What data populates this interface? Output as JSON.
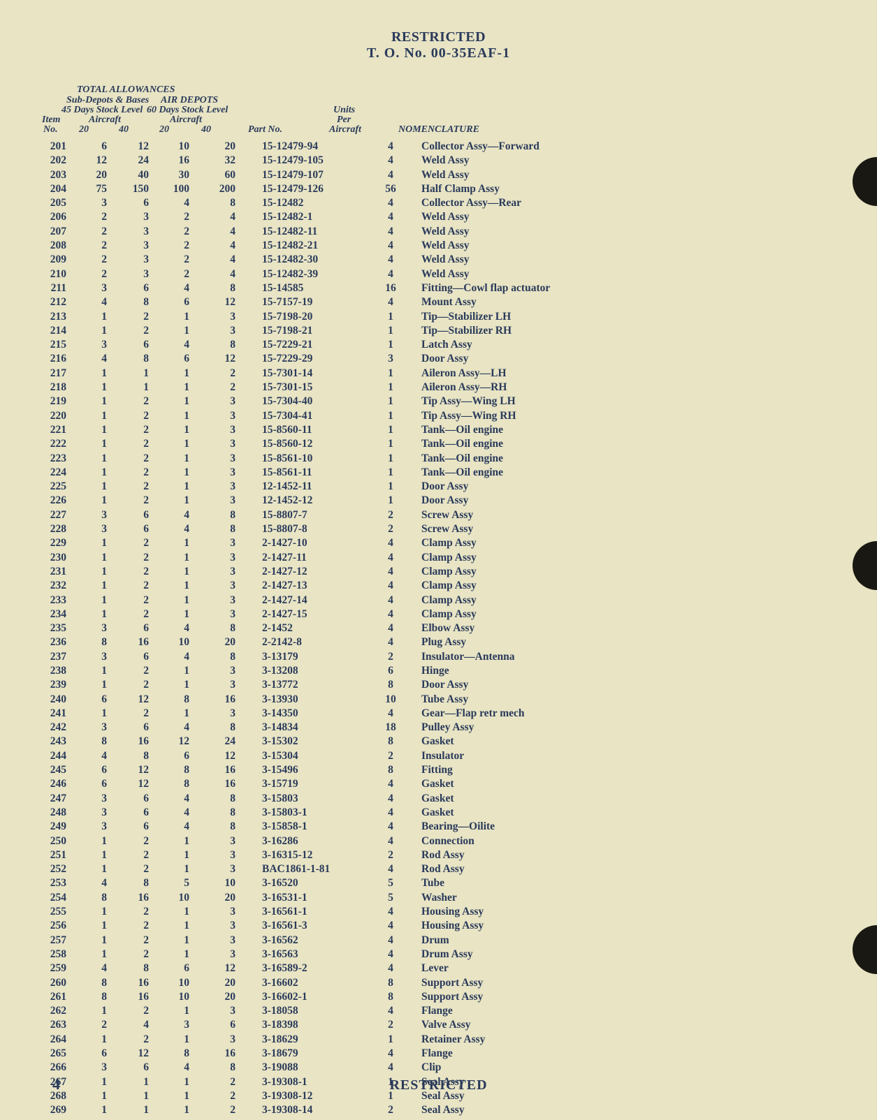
{
  "header": {
    "l1": "RESTRICTED",
    "l2": "T. O. No. 00-35EAF-1"
  },
  "footer": {
    "page": "4",
    "restricted": "RESTRICTED"
  },
  "head": {
    "total_allow": "TOTAL ALLOWANCES",
    "sub_depots": "Sub-Depots & Bases",
    "air_depots": "AIR DEPOTS",
    "l45": "45 Days Stock Level",
    "l60": "60 Days Stock Level",
    "aircraft": "Aircraft",
    "item": "Item",
    "no": "No.",
    "c20": "20",
    "c40": "40",
    "partno": "Part No.",
    "units": "Units",
    "per": "Per",
    "aircraft2": "Aircraft",
    "nomen": "NOMENCLATURE"
  },
  "col_widths": {
    "item": 48,
    "c1": 50,
    "c2": 60,
    "c3": 55,
    "c4": 60,
    "part": 170,
    "upa": 80,
    "nomen": 300
  },
  "rows": [
    {
      "i": "201",
      "a": "6",
      "b": "12",
      "c": "10",
      "d": "20",
      "p": "15-12479-94",
      "u": "4",
      "n": "Collector Assy—Forward"
    },
    {
      "i": "202",
      "a": "12",
      "b": "24",
      "c": "16",
      "d": "32",
      "p": "15-12479-105",
      "u": "4",
      "n": "Weld Assy"
    },
    {
      "i": "203",
      "a": "20",
      "b": "40",
      "c": "30",
      "d": "60",
      "p": "15-12479-107",
      "u": "4",
      "n": "Weld Assy"
    },
    {
      "i": "204",
      "a": "75",
      "b": "150",
      "c": "100",
      "d": "200",
      "p": "15-12479-126",
      "u": "56",
      "n": "Half Clamp Assy"
    },
    {
      "i": "205",
      "a": "3",
      "b": "6",
      "c": "4",
      "d": "8",
      "p": "15-12482",
      "u": "4",
      "n": "Collector Assy—Rear"
    },
    {
      "i": "206",
      "a": "2",
      "b": "3",
      "c": "2",
      "d": "4",
      "p": "15-12482-1",
      "u": "4",
      "n": "Weld Assy"
    },
    {
      "i": "207",
      "a": "2",
      "b": "3",
      "c": "2",
      "d": "4",
      "p": "15-12482-11",
      "u": "4",
      "n": "Weld Assy"
    },
    {
      "i": "208",
      "a": "2",
      "b": "3",
      "c": "2",
      "d": "4",
      "p": "15-12482-21",
      "u": "4",
      "n": "Weld Assy"
    },
    {
      "i": "209",
      "a": "2",
      "b": "3",
      "c": "2",
      "d": "4",
      "p": "15-12482-30",
      "u": "4",
      "n": "Weld Assy"
    },
    {
      "i": "210",
      "a": "2",
      "b": "3",
      "c": "2",
      "d": "4",
      "p": "15-12482-39",
      "u": "4",
      "n": "Weld Assy"
    },
    {
      "i": "211",
      "a": "3",
      "b": "6",
      "c": "4",
      "d": "8",
      "p": "15-14585",
      "u": "16",
      "n": "Fitting—Cowl flap actuator"
    },
    {
      "i": "212",
      "a": "4",
      "b": "8",
      "c": "6",
      "d": "12",
      "p": "15-7157-19",
      "u": "4",
      "n": "Mount Assy"
    },
    {
      "i": "213",
      "a": "1",
      "b": "2",
      "c": "1",
      "d": "3",
      "p": "15-7198-20",
      "u": "1",
      "n": "Tip—Stabilizer LH"
    },
    {
      "i": "214",
      "a": "1",
      "b": "2",
      "c": "1",
      "d": "3",
      "p": "15-7198-21",
      "u": "1",
      "n": "Tip—Stabilizer RH"
    },
    {
      "i": "215",
      "a": "3",
      "b": "6",
      "c": "4",
      "d": "8",
      "p": "15-7229-21",
      "u": "1",
      "n": "Latch Assy"
    },
    {
      "i": "216",
      "a": "4",
      "b": "8",
      "c": "6",
      "d": "12",
      "p": "15-7229-29",
      "u": "3",
      "n": "Door Assy"
    },
    {
      "i": "217",
      "a": "1",
      "b": "1",
      "c": "1",
      "d": "2",
      "p": "15-7301-14",
      "u": "1",
      "n": "Aileron Assy—LH"
    },
    {
      "i": "218",
      "a": "1",
      "b": "1",
      "c": "1",
      "d": "2",
      "p": "15-7301-15",
      "u": "1",
      "n": "Aileron Assy—RH"
    },
    {
      "i": "219",
      "a": "1",
      "b": "2",
      "c": "1",
      "d": "3",
      "p": "15-7304-40",
      "u": "1",
      "n": "Tip Assy—Wing LH"
    },
    {
      "i": "220",
      "a": "1",
      "b": "2",
      "c": "1",
      "d": "3",
      "p": "15-7304-41",
      "u": "1",
      "n": "Tip Assy—Wing RH"
    },
    {
      "i": "221",
      "a": "1",
      "b": "2",
      "c": "1",
      "d": "3",
      "p": "15-8560-11",
      "u": "1",
      "n": "Tank—Oil engine"
    },
    {
      "i": "222",
      "a": "1",
      "b": "2",
      "c": "1",
      "d": "3",
      "p": "15-8560-12",
      "u": "1",
      "n": "Tank—Oil engine"
    },
    {
      "i": "223",
      "a": "1",
      "b": "2",
      "c": "1",
      "d": "3",
      "p": "15-8561-10",
      "u": "1",
      "n": "Tank—Oil engine"
    },
    {
      "i": "224",
      "a": "1",
      "b": "2",
      "c": "1",
      "d": "3",
      "p": "15-8561-11",
      "u": "1",
      "n": "Tank—Oil engine"
    },
    {
      "i": "225",
      "a": "1",
      "b": "2",
      "c": "1",
      "d": "3",
      "p": "12-1452-11",
      "u": "1",
      "n": "Door Assy"
    },
    {
      "i": "226",
      "a": "1",
      "b": "2",
      "c": "1",
      "d": "3",
      "p": "12-1452-12",
      "u": "1",
      "n": "Door Assy"
    },
    {
      "i": "227",
      "a": "3",
      "b": "6",
      "c": "4",
      "d": "8",
      "p": "15-8807-7",
      "u": "2",
      "n": "Screw Assy"
    },
    {
      "i": "228",
      "a": "3",
      "b": "6",
      "c": "4",
      "d": "8",
      "p": "15-8807-8",
      "u": "2",
      "n": "Screw Assy"
    },
    {
      "i": "229",
      "a": "1",
      "b": "2",
      "c": "1",
      "d": "3",
      "p": "2-1427-10",
      "u": "4",
      "n": "Clamp Assy"
    },
    {
      "i": "230",
      "a": "1",
      "b": "2",
      "c": "1",
      "d": "3",
      "p": "2-1427-11",
      "u": "4",
      "n": "Clamp Assy"
    },
    {
      "i": "231",
      "a": "1",
      "b": "2",
      "c": "1",
      "d": "3",
      "p": "2-1427-12",
      "u": "4",
      "n": "Clamp Assy"
    },
    {
      "i": "232",
      "a": "1",
      "b": "2",
      "c": "1",
      "d": "3",
      "p": "2-1427-13",
      "u": "4",
      "n": "Clamp Assy"
    },
    {
      "i": "233",
      "a": "1",
      "b": "2",
      "c": "1",
      "d": "3",
      "p": "2-1427-14",
      "u": "4",
      "n": "Clamp Assy"
    },
    {
      "i": "234",
      "a": "1",
      "b": "2",
      "c": "1",
      "d": "3",
      "p": "2-1427-15",
      "u": "4",
      "n": "Clamp Assy"
    },
    {
      "i": "235",
      "a": "3",
      "b": "6",
      "c": "4",
      "d": "8",
      "p": "2-1452",
      "u": "4",
      "n": "Elbow Assy"
    },
    {
      "i": "236",
      "a": "8",
      "b": "16",
      "c": "10",
      "d": "20",
      "p": "2-2142-8",
      "u": "4",
      "n": "Plug Assy"
    },
    {
      "i": "237",
      "a": "3",
      "b": "6",
      "c": "4",
      "d": "8",
      "p": "3-13179",
      "u": "2",
      "n": "Insulator—Antenna"
    },
    {
      "i": "238",
      "a": "1",
      "b": "2",
      "c": "1",
      "d": "3",
      "p": "3-13208",
      "u": "6",
      "n": "Hinge"
    },
    {
      "i": "239",
      "a": "1",
      "b": "2",
      "c": "1",
      "d": "3",
      "p": "3-13772",
      "u": "8",
      "n": "Door Assy"
    },
    {
      "i": "240",
      "a": "6",
      "b": "12",
      "c": "8",
      "d": "16",
      "p": "3-13930",
      "u": "10",
      "n": "Tube Assy"
    },
    {
      "i": "241",
      "a": "1",
      "b": "2",
      "c": "1",
      "d": "3",
      "p": "3-14350",
      "u": "4",
      "n": "Gear—Flap retr mech"
    },
    {
      "i": "242",
      "a": "3",
      "b": "6",
      "c": "4",
      "d": "8",
      "p": "3-14834",
      "u": "18",
      "n": "Pulley Assy"
    },
    {
      "i": "243",
      "a": "8",
      "b": "16",
      "c": "12",
      "d": "24",
      "p": "3-15302",
      "u": "8",
      "n": "Gasket"
    },
    {
      "i": "244",
      "a": "4",
      "b": "8",
      "c": "6",
      "d": "12",
      "p": "3-15304",
      "u": "2",
      "n": "Insulator"
    },
    {
      "i": "245",
      "a": "6",
      "b": "12",
      "c": "8",
      "d": "16",
      "p": "3-15496",
      "u": "8",
      "n": "Fitting"
    },
    {
      "i": "246",
      "a": "6",
      "b": "12",
      "c": "8",
      "d": "16",
      "p": "3-15719",
      "u": "4",
      "n": "Gasket"
    },
    {
      "i": "247",
      "a": "3",
      "b": "6",
      "c": "4",
      "d": "8",
      "p": "3-15803",
      "u": "4",
      "n": "Gasket"
    },
    {
      "i": "248",
      "a": "3",
      "b": "6",
      "c": "4",
      "d": "8",
      "p": "3-15803-1",
      "u": "4",
      "n": "Gasket"
    },
    {
      "i": "249",
      "a": "3",
      "b": "6",
      "c": "4",
      "d": "8",
      "p": "3-15858-1",
      "u": "4",
      "n": "Bearing—Oilite"
    },
    {
      "i": "250",
      "a": "1",
      "b": "2",
      "c": "1",
      "d": "3",
      "p": "3-16286",
      "u": "4",
      "n": "Connection"
    },
    {
      "i": "251",
      "a": "1",
      "b": "2",
      "c": "1",
      "d": "3",
      "p": "3-16315-12",
      "u": "2",
      "n": "Rod Assy"
    },
    {
      "i": "252",
      "a": "1",
      "b": "2",
      "c": "1",
      "d": "3",
      "p": "BAC1861-1-81",
      "u": "4",
      "n": "Rod Assy"
    },
    {
      "i": "253",
      "a": "4",
      "b": "8",
      "c": "5",
      "d": "10",
      "p": "3-16520",
      "u": "5",
      "n": "Tube"
    },
    {
      "i": "254",
      "a": "8",
      "b": "16",
      "c": "10",
      "d": "20",
      "p": "3-16531-1",
      "u": "5",
      "n": "Washer"
    },
    {
      "i": "255",
      "a": "1",
      "b": "2",
      "c": "1",
      "d": "3",
      "p": "3-16561-1",
      "u": "4",
      "n": "Housing Assy"
    },
    {
      "i": "256",
      "a": "1",
      "b": "2",
      "c": "1",
      "d": "3",
      "p": "3-16561-3",
      "u": "4",
      "n": "Housing Assy"
    },
    {
      "i": "257",
      "a": "1",
      "b": "2",
      "c": "1",
      "d": "3",
      "p": "3-16562",
      "u": "4",
      "n": "Drum"
    },
    {
      "i": "258",
      "a": "1",
      "b": "2",
      "c": "1",
      "d": "3",
      "p": "3-16563",
      "u": "4",
      "n": "Drum Assy"
    },
    {
      "i": "259",
      "a": "4",
      "b": "8",
      "c": "6",
      "d": "12",
      "p": "3-16589-2",
      "u": "4",
      "n": "Lever"
    },
    {
      "i": "260",
      "a": "8",
      "b": "16",
      "c": "10",
      "d": "20",
      "p": "3-16602",
      "u": "8",
      "n": "Support Assy"
    },
    {
      "i": "261",
      "a": "8",
      "b": "16",
      "c": "10",
      "d": "20",
      "p": "3-16602-1",
      "u": "8",
      "n": "Support Assy"
    },
    {
      "i": "262",
      "a": "1",
      "b": "2",
      "c": "1",
      "d": "3",
      "p": "3-18058",
      "u": "4",
      "n": "Flange"
    },
    {
      "i": "263",
      "a": "2",
      "b": "4",
      "c": "3",
      "d": "6",
      "p": "3-18398",
      "u": "2",
      "n": "Valve Assy"
    },
    {
      "i": "264",
      "a": "1",
      "b": "2",
      "c": "1",
      "d": "3",
      "p": "3-18629",
      "u": "1",
      "n": "Retainer Assy"
    },
    {
      "i": "265",
      "a": "6",
      "b": "12",
      "c": "8",
      "d": "16",
      "p": "3-18679",
      "u": "4",
      "n": "Flange"
    },
    {
      "i": "266",
      "a": "3",
      "b": "6",
      "c": "4",
      "d": "8",
      "p": "3-19088",
      "u": "4",
      "n": "Clip"
    },
    {
      "i": "267",
      "a": "1",
      "b": "1",
      "c": "1",
      "d": "2",
      "p": "3-19308-1",
      "u": "1",
      "n": "Seal Assy"
    },
    {
      "i": "268",
      "a": "1",
      "b": "1",
      "c": "1",
      "d": "2",
      "p": "3-19308-12",
      "u": "1",
      "n": "Seal Assy"
    },
    {
      "i": "269",
      "a": "1",
      "b": "1",
      "c": "1",
      "d": "2",
      "p": "3-19308-14",
      "u": "2",
      "n": "Seal Assy"
    }
  ]
}
